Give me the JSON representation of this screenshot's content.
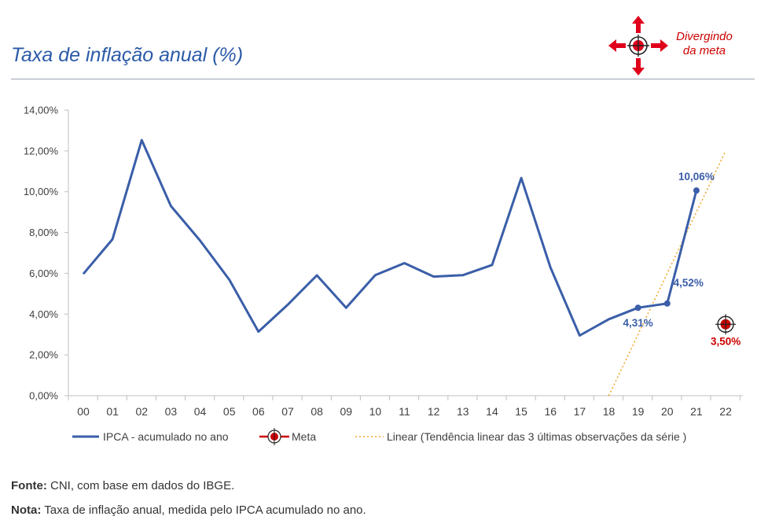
{
  "header": {
    "title": "Taxa de inflação anual (%)",
    "badge_line1": "Divergindo",
    "badge_line2": "da meta"
  },
  "chart_data": {
    "type": "line",
    "categories": [
      "00",
      "01",
      "02",
      "03",
      "04",
      "05",
      "06",
      "07",
      "08",
      "09",
      "10",
      "11",
      "12",
      "13",
      "14",
      "15",
      "16",
      "17",
      "18",
      "19",
      "20",
      "21",
      "22"
    ],
    "ylim": [
      0,
      14
    ],
    "yticks": [
      "0,00%",
      "2,00%",
      "4,00%",
      "6,00%",
      "8,00%",
      "10,00%",
      "12,00%",
      "14,00%"
    ],
    "series": [
      {
        "name": "IPCA - acumulado no ano",
        "color": "#3a5ea8",
        "values": [
          5.97,
          7.67,
          12.53,
          9.3,
          7.6,
          5.69,
          3.14,
          4.46,
          5.9,
          4.31,
          5.91,
          6.5,
          5.84,
          5.91,
          6.41,
          10.67,
          6.29,
          2.95,
          3.75,
          4.31,
          4.52,
          10.06,
          null
        ]
      },
      {
        "name": "Meta",
        "color": "#cc0000",
        "x": "22",
        "value": 3.5
      },
      {
        "name": "Linear (Tendência linear das 3 últimas observações da série )",
        "color": "#f0a830",
        "x_start": "18",
        "x_end": "22",
        "y_start": 0.0,
        "y_end": 12.0
      }
    ],
    "data_labels": [
      {
        "category": "19",
        "value": 4.31,
        "text": "4,31%",
        "color": "#3a5ea8"
      },
      {
        "category": "20",
        "value": 4.52,
        "text": "4,52%",
        "color": "#3a5ea8"
      },
      {
        "category": "21",
        "value": 10.06,
        "text": "10,06%",
        "color": "#3a5ea8"
      },
      {
        "category": "22",
        "value": 3.5,
        "text": "3,50%",
        "color": "#cc0000"
      }
    ],
    "legend_placement": "bottom",
    "grid": false
  },
  "footer": {
    "source_label": "Fonte:",
    "source_text": " CNI, com base em dados do IBGE.",
    "note_label": "Nota:",
    "note_text": " Taxa de inflação anual, medida pelo IPCA acumulado no ano."
  }
}
